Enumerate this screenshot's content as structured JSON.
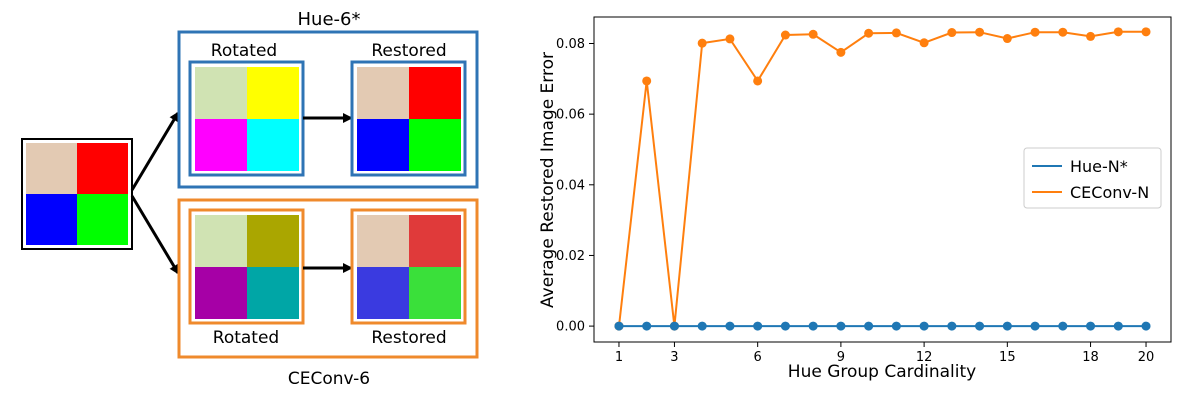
{
  "diagram": {
    "top_box_title": "Hue-6*",
    "top_rotated_label": "Rotated",
    "top_restored_label": "Restored",
    "bottom_box_title": "CEConv-6",
    "bottom_rotated_label": "Rotated",
    "bottom_restored_label": "Restored",
    "colors": {
      "input": [
        "#e3cab3",
        "#ff0000",
        "#0000ff",
        "#00ff00"
      ],
      "top_rotated": [
        "#d0e3b3",
        "#ffff00",
        "#ff00ff",
        "#00ffff"
      ],
      "top_restored": [
        "#e3cab3",
        "#ff0000",
        "#0000ff",
        "#00ff00"
      ],
      "bottom_rotated": [
        "#d0e3b3",
        "#aaa600",
        "#a600a6",
        "#00a6a6"
      ],
      "bottom_restored": [
        "#e3cab3",
        "#e03a3a",
        "#3a3ae0",
        "#3ae03a"
      ],
      "top_box": "#2f74b5",
      "bottom_box": "#ef8a2c"
    }
  },
  "chart_data": {
    "type": "line",
    "title": "",
    "xlabel": "Hue Group Cardinality",
    "ylabel": "Average Restored Image Error",
    "x": [
      1,
      2,
      3,
      4,
      5,
      6,
      7,
      8,
      9,
      10,
      11,
      12,
      13,
      14,
      15,
      16,
      17,
      18,
      19,
      20
    ],
    "xticks": [
      "1",
      "3",
      "6",
      "9",
      "12",
      "15",
      "18",
      "20"
    ],
    "xtick_values": [
      1,
      3,
      6,
      9,
      12,
      15,
      18,
      20
    ],
    "yticks": [
      "0.00",
      "0.02",
      "0.04",
      "0.06",
      "0.08"
    ],
    "ytick_values": [
      0,
      0.02,
      0.04,
      0.06,
      0.08
    ],
    "xlim": [
      0.1,
      20.9
    ],
    "ylim": [
      -0.0045,
      0.0875
    ],
    "grid": false,
    "legend_position": "center-right",
    "series": [
      {
        "name": "Hue-N*",
        "color": "#1f77b4",
        "values": [
          0,
          0,
          0,
          0,
          0,
          0,
          0,
          0,
          0,
          0,
          0,
          0,
          0,
          0,
          0,
          0,
          0,
          0,
          0,
          0
        ]
      },
      {
        "name": "CEConv-N",
        "color": "#ff7f0e",
        "values": [
          0,
          0.0694,
          0,
          0.0801,
          0.0813,
          0.0694,
          0.0824,
          0.0826,
          0.0775,
          0.0829,
          0.083,
          0.0802,
          0.0831,
          0.0832,
          0.0814,
          0.0832,
          0.0832,
          0.082,
          0.0833,
          0.0833
        ]
      }
    ]
  }
}
